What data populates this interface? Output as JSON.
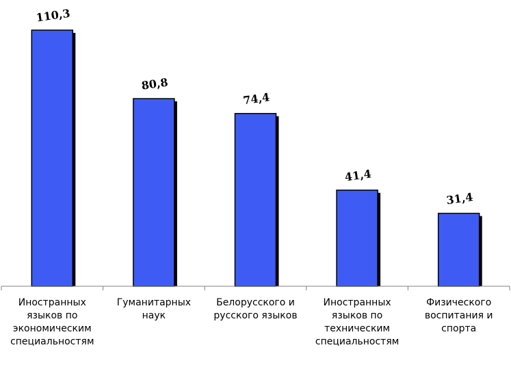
{
  "chart_data": {
    "type": "bar",
    "categories": [
      "Иностранных\nязыков по\nэкономическим\nспециальностям",
      "Гуманитарных\nнаук",
      "Белорусского и\nрусского языков",
      "Иностранных\nязыков по\nтехническим\nспециальностям",
      "Физического\nвоспитания и\nспорта"
    ],
    "values": [
      110.3,
      80.8,
      74.4,
      41.4,
      31.4
    ],
    "value_labels": [
      "110,3",
      "80,8",
      "74,4",
      "41,4",
      "31,4"
    ],
    "title": "",
    "xlabel": "",
    "ylabel": "",
    "ylim": [
      0,
      110.3
    ],
    "grid": false,
    "legend": "none",
    "colors": {
      "bar": "#3e5cf4",
      "shadow": "#000000",
      "axis": "#808080"
    }
  }
}
